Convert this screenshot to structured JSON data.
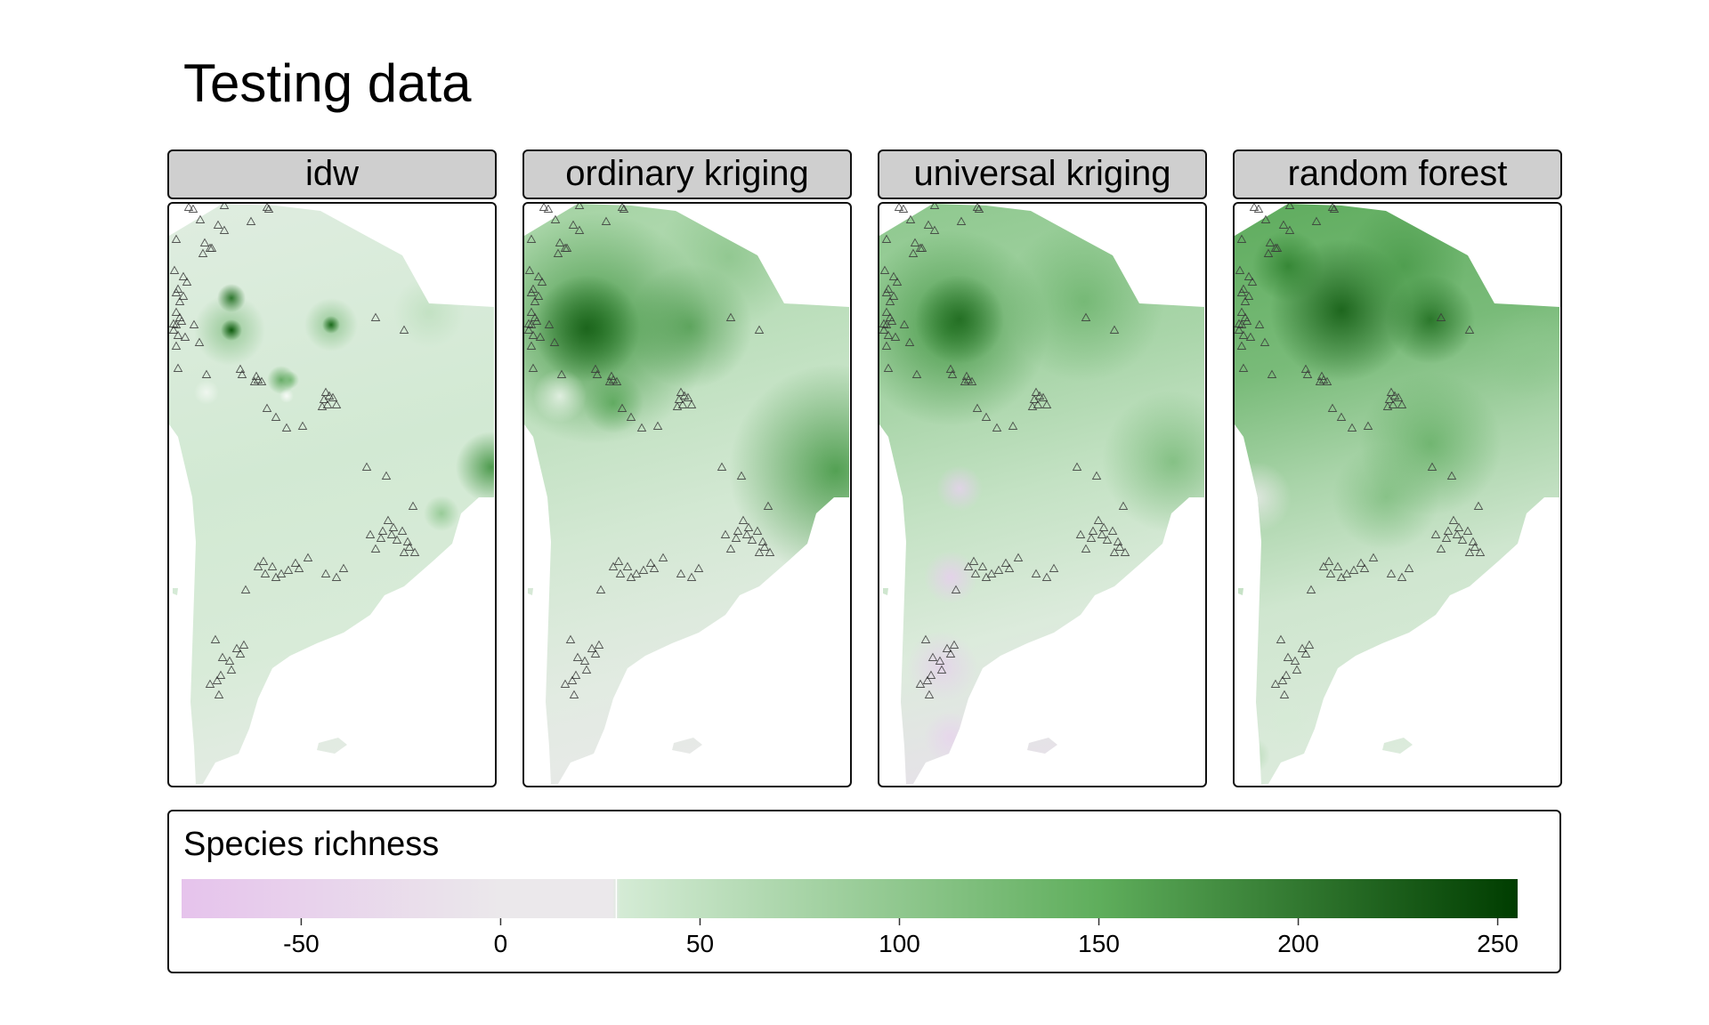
{
  "title": "Testing data",
  "panels": [
    {
      "label": "idw",
      "style": "idw"
    },
    {
      "label": "ordinary kriging",
      "style": "ok"
    },
    {
      "label": "universal kriging",
      "style": "uk"
    },
    {
      "label": "random forest",
      "style": "rf"
    }
  ],
  "legend": {
    "title": "Species richness",
    "min": -80,
    "max": 255,
    "ticks": [
      "-50",
      "0",
      "50",
      "100",
      "150",
      "200",
      "250"
    ],
    "tick_values": [
      -50,
      0,
      50,
      100,
      150,
      200,
      250
    ],
    "colors": {
      "low": "#e6c3ec",
      "zero": "#ebe8eb",
      "light": "#d4ebd5",
      "mid": "#5fae5c",
      "high": "#003d00",
      "marker": "#3a3a3a"
    }
  }
}
